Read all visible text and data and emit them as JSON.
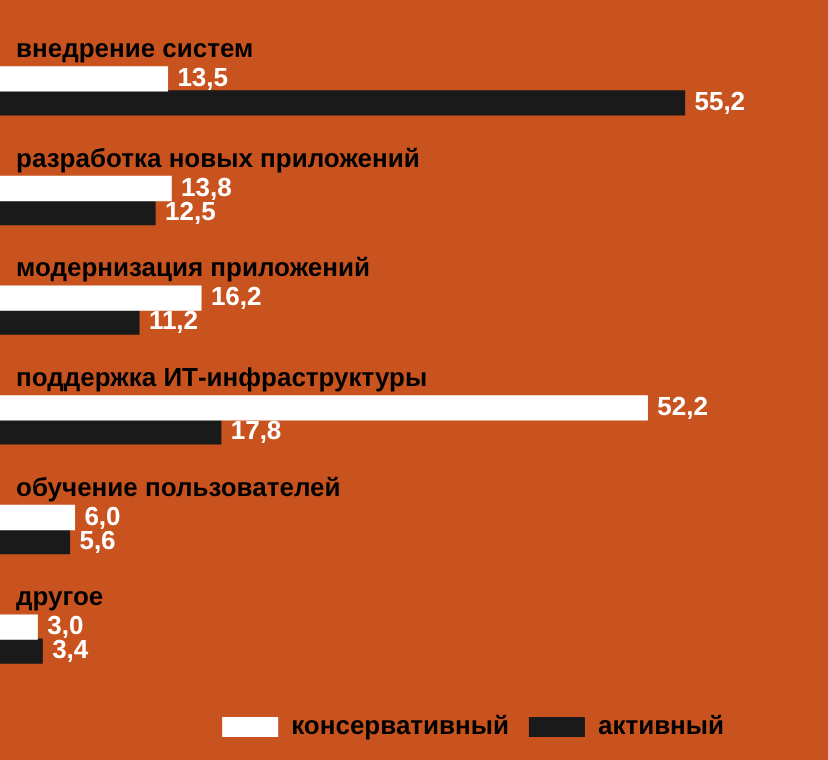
{
  "chart_data": {
    "type": "bar",
    "orientation": "horizontal",
    "categories": [
      "внедрение систем",
      "разработка новых приложений",
      "модернизация приложений",
      "поддержка ИТ-инфраструктуры",
      "обучение пользователей",
      "другое"
    ],
    "series": [
      {
        "name": "консервативный",
        "color": "#ffffff",
        "values": [
          13.5,
          13.8,
          16.2,
          52.2,
          6.0,
          3.0
        ],
        "value_labels": [
          "13,5",
          "13,8",
          "16,2",
          "52,2",
          "6,0",
          "3,0"
        ]
      },
      {
        "name": "активный",
        "color": "#1a1a1a",
        "values": [
          55.2,
          12.5,
          11.2,
          17.8,
          5.6,
          3.4
        ],
        "value_labels": [
          "55,2",
          "12,5",
          "11,2",
          "17,8",
          "5,6",
          "3,4"
        ]
      }
    ],
    "legend": "bottom right",
    "grid": false
  }
}
